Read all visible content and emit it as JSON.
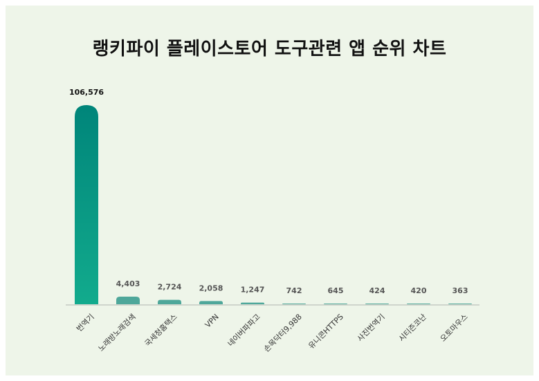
{
  "page": {
    "title": "랭키파이 플레이스토어 도구관련 앱 순위 차트"
  },
  "colors": {
    "background": "#eef5e9",
    "bar_top": "#00857a",
    "bar_bottom": "#12ab8d",
    "bar_small": "#4ea79a",
    "baseline": "#cfd5cc",
    "label_first": "#111111",
    "label_rest": "#555555"
  },
  "chart_data": {
    "type": "bar",
    "title": "랭키파이 플레이스토어 도구관련 앱 순위 차트",
    "categories": [
      "번역기",
      "노래방노래검색",
      "국세청홈택스",
      "VPN",
      "네이버파파고",
      "손목닥터9,988",
      "유니콘HTTPS",
      "사진번역기",
      "시티즌코난",
      "오토마우스"
    ],
    "values": [
      106576,
      4403,
      2724,
      2058,
      1247,
      742,
      645,
      424,
      420,
      363
    ],
    "value_labels": [
      "106,576",
      "4,403",
      "2,724",
      "2,058",
      "1,247",
      "742",
      "645",
      "424",
      "420",
      "363"
    ],
    "xlabel": "",
    "ylabel": "",
    "ylim": [
      0,
      106576
    ],
    "grid": false,
    "legend": "none"
  }
}
